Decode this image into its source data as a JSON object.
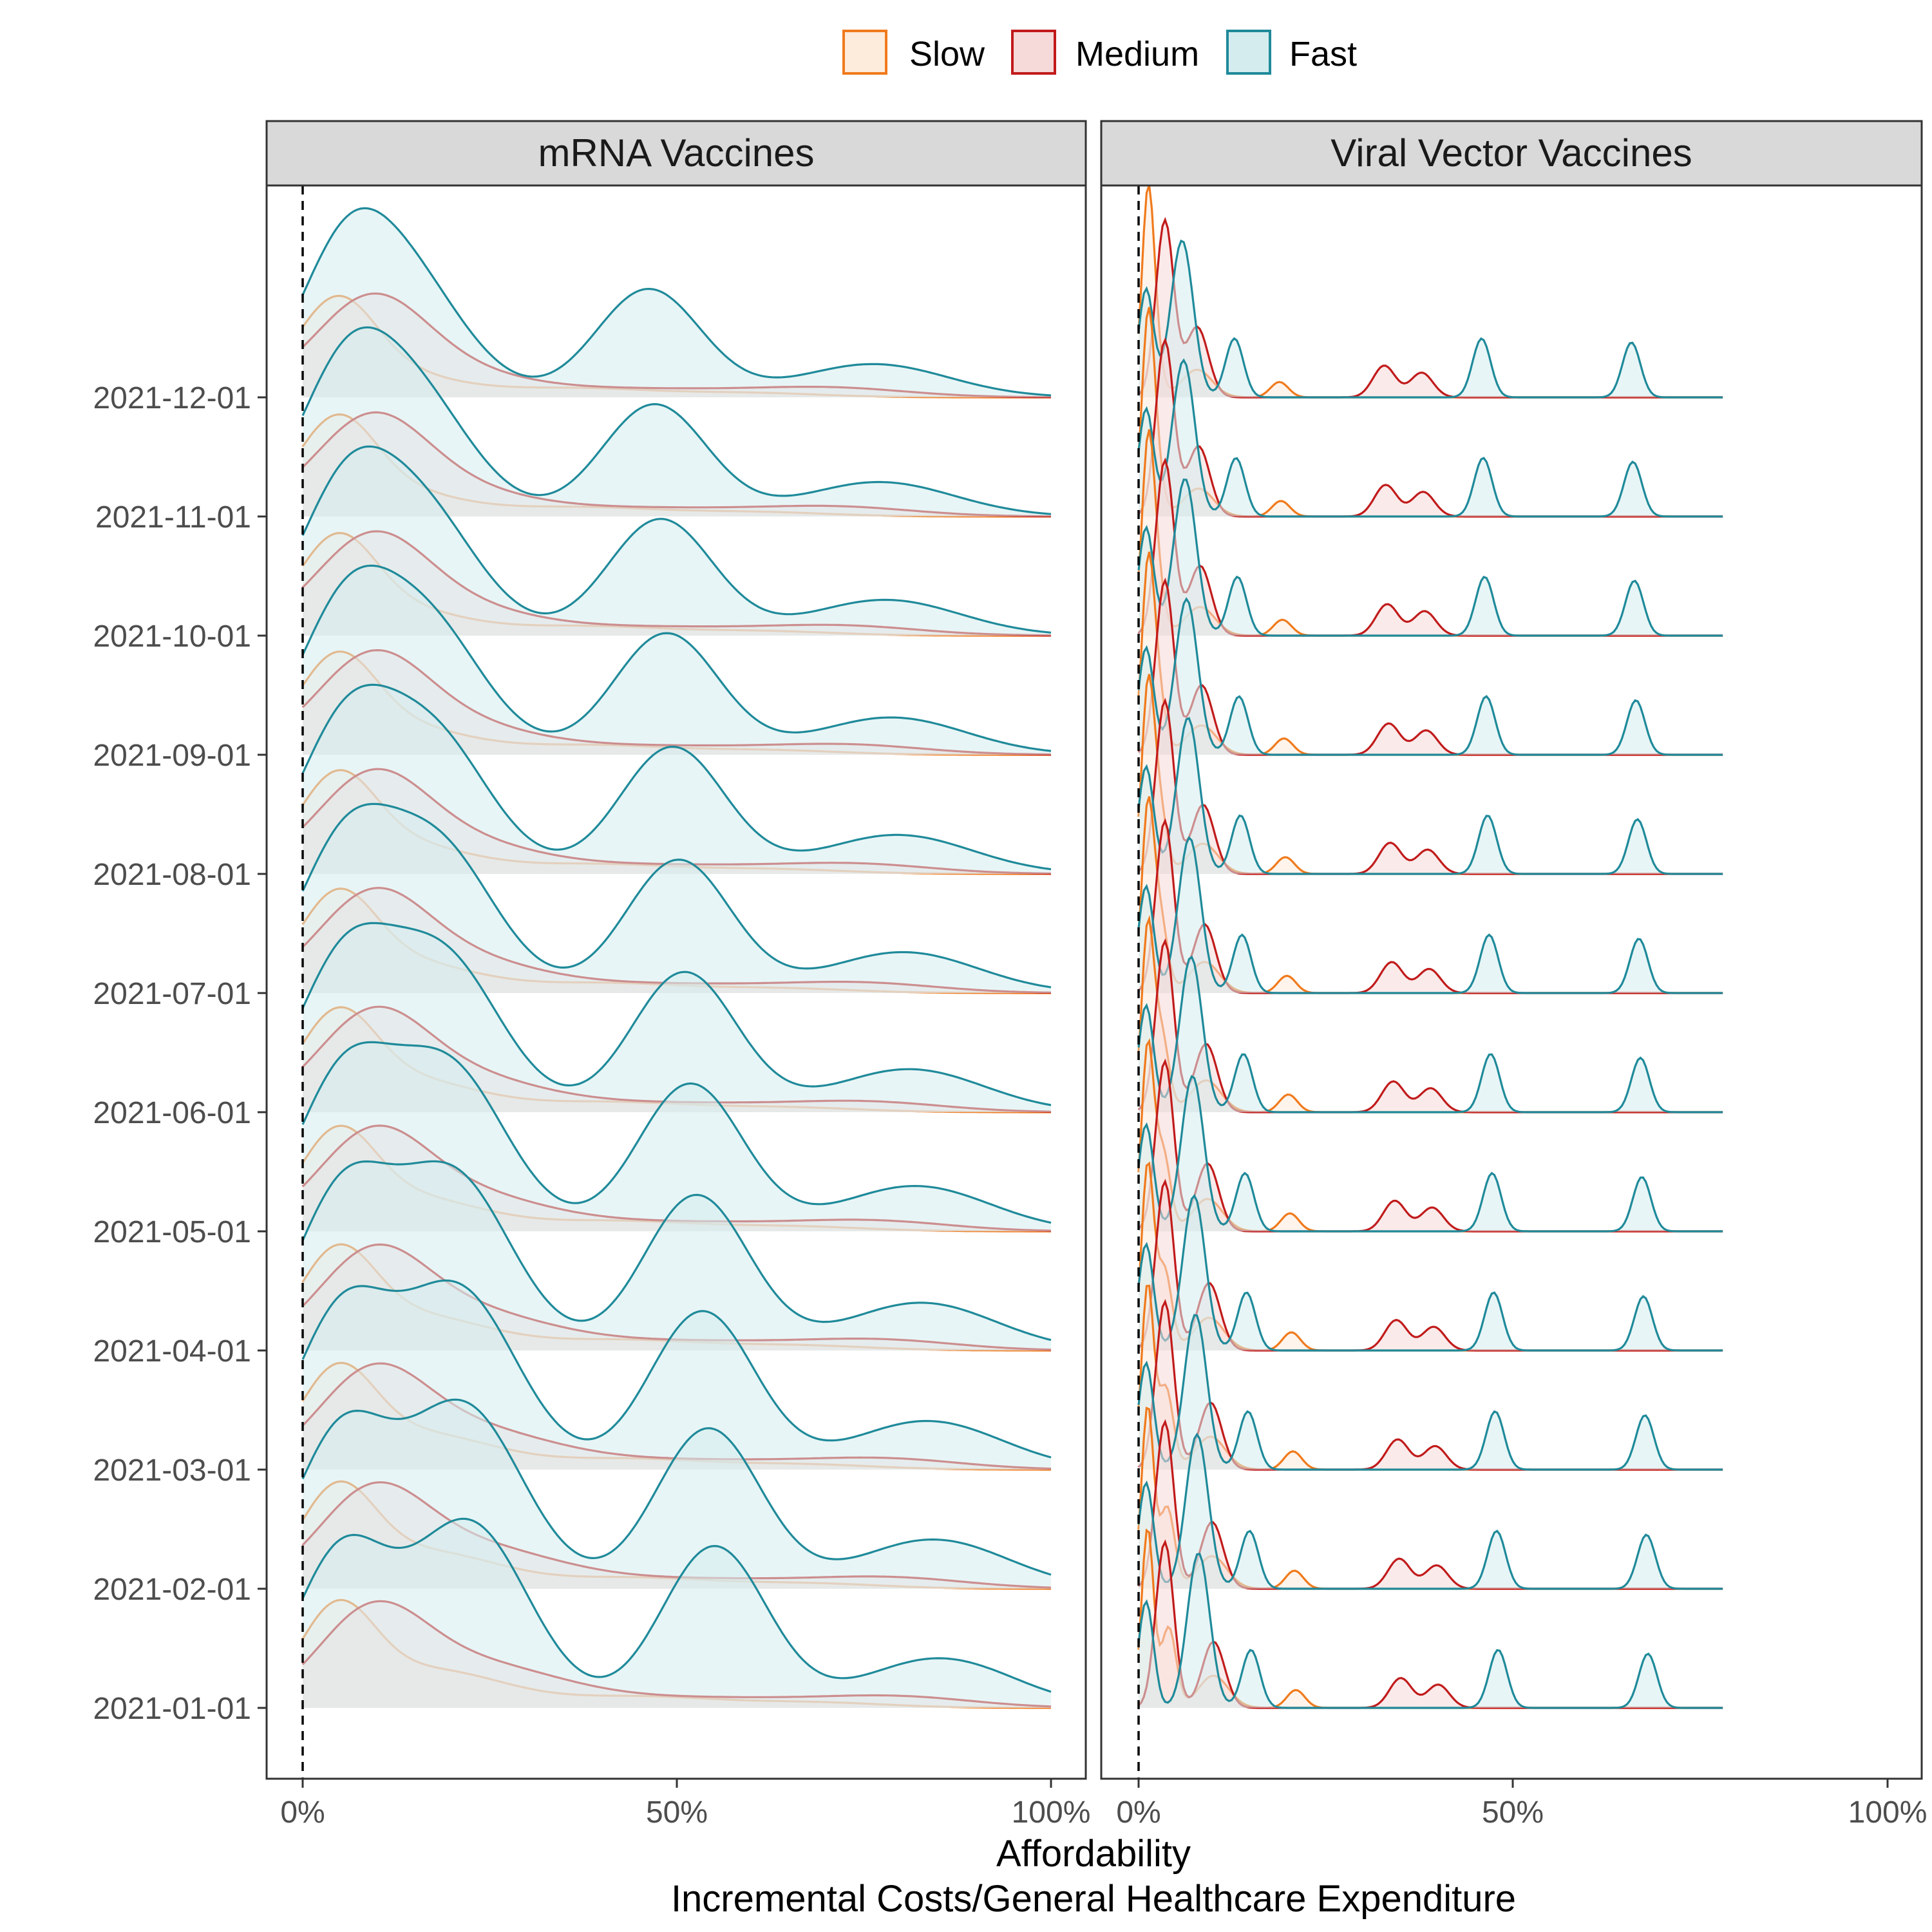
{
  "chart_data": {
    "type": "ridgeline",
    "xlabel": "Affordability",
    "xlabel_sub": "Incremental Costs/General Healthcare Expenditure",
    "x_ticks": [
      "0%",
      "50%",
      "100%"
    ],
    "xlim": [
      0,
      1
    ],
    "reference_line_x": 0,
    "y_categories": [
      "2021-01-01",
      "2021-02-01",
      "2021-03-01",
      "2021-04-01",
      "2021-05-01",
      "2021-06-01",
      "2021-07-01",
      "2021-08-01",
      "2021-09-01",
      "2021-10-01",
      "2021-11-01",
      "2021-12-01"
    ],
    "grid": false,
    "legend_position": "top",
    "legend": [
      {
        "name": "Slow",
        "stroke": "#F07A1C",
        "fill": "#FDEBDC"
      },
      {
        "name": "Medium",
        "stroke": "#C11B1B",
        "fill": "#F6D9D9"
      },
      {
        "name": "Fast",
        "stroke": "#1F8A9A",
        "fill": "#D5ECEE"
      }
    ],
    "panels": [
      {
        "title": "mRNA Vaccines",
        "x_max": 1.0,
        "series": {
          "Slow": {
            "gaussians": [
              [
                0.045,
                0.05,
                1.0
              ],
              [
                0.17,
                0.1,
                0.42
              ],
              [
                0.45,
                0.1,
                0.12
              ],
              [
                0.68,
                0.1,
                0.06
              ]
            ],
            "peak_pos_jan": 0.105,
            "peak_pos_dec": 0.05
          },
          "Medium": {
            "gaussians": [
              [
                0.09,
                0.07,
                1.0
              ],
              [
                0.22,
                0.12,
                0.55
              ],
              [
                0.55,
                0.15,
                0.12
              ],
              [
                0.8,
                0.1,
                0.12
              ]
            ],
            "peak_pos_jan": 0.095,
            "peak_pos_dec": 0.07
          },
          "Fast": {
            "gaussians": [
              [
                0.05,
                0.06,
                0.6
              ],
              [
                0.22,
                0.08,
                0.75
              ],
              [
                0.55,
                0.07,
                0.65
              ],
              [
                0.85,
                0.1,
                0.2
              ]
            ],
            "peak_pos_jan": 0.8,
            "peak_pos_dec": 0.8
          }
        },
        "bump_center_jan": 0.6,
        "bump_center_dec": 0.45
      },
      {
        "title": "Viral Vector Vaccines",
        "x_max": 0.78,
        "series": {
          "Slow": {
            "gaussians": [
              [
                0.012,
                0.008,
                1.0
              ],
              [
                0.04,
                0.01,
                0.45
              ],
              [
                0.1,
                0.02,
                0.18
              ],
              [
                0.21,
                0.012,
                0.1
              ]
            ],
            "peak_pos_jan": 0.7,
            "peak_pos_dec": 1.0
          },
          "Medium": {
            "gaussians": [
              [
                0.035,
                0.012,
                1.0
              ],
              [
                0.1,
                0.015,
                0.4
              ],
              [
                0.35,
                0.015,
                0.18
              ],
              [
                0.4,
                0.015,
                0.14
              ]
            ],
            "peak_pos_jan": 0.6,
            "peak_pos_dec": 0.7
          },
          "Fast": {
            "gaussians": [
              [
                0.01,
                0.01,
                0.55
              ],
              [
                0.08,
                0.015,
                0.8
              ],
              [
                0.15,
                0.012,
                0.3
              ],
              [
                0.48,
                0.012,
                0.3
              ],
              [
                0.68,
                0.012,
                0.28
              ]
            ],
            "peak_pos_jan": 0.5,
            "peak_pos_dec": 0.52
          }
        }
      }
    ]
  }
}
